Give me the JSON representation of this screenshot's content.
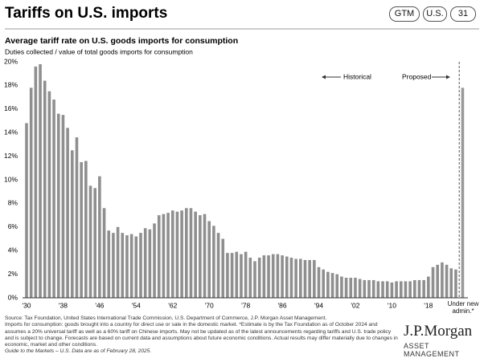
{
  "header": {
    "title": "Tariffs on U.S. imports",
    "tags": [
      "GTM",
      "U.S.",
      "31"
    ]
  },
  "chart_data": {
    "type": "bar",
    "title": "Average tariff rate on U.S. goods imports for consumption",
    "subtitle": "Duties collected / value of total goods imports for consumption",
    "categories": [
      "'30",
      null,
      null,
      null,
      null,
      null,
      null,
      null,
      "'38",
      null,
      null,
      null,
      null,
      null,
      null,
      null,
      "'46",
      null,
      null,
      null,
      null,
      null,
      null,
      null,
      "'54",
      null,
      null,
      null,
      null,
      null,
      null,
      null,
      "'62",
      null,
      null,
      null,
      null,
      null,
      null,
      null,
      "'70",
      null,
      null,
      null,
      null,
      null,
      null,
      null,
      "'78",
      null,
      null,
      null,
      null,
      null,
      null,
      null,
      "'86",
      null,
      null,
      null,
      null,
      null,
      null,
      null,
      "'94",
      null,
      null,
      null,
      null,
      null,
      null,
      null,
      "'02",
      null,
      null,
      null,
      null,
      null,
      null,
      null,
      "'10",
      null,
      null,
      null,
      null,
      null,
      null,
      null,
      "'18",
      null,
      null,
      null,
      null,
      null,
      null,
      "Under new admin.*"
    ],
    "values": [
      14.8,
      17.8,
      19.6,
      19.8,
      18.4,
      17.5,
      16.8,
      15.6,
      15.5,
      14.4,
      12.5,
      13.6,
      11.5,
      11.6,
      9.5,
      9.3,
      10.3,
      7.6,
      5.7,
      5.5,
      6.0,
      5.5,
      5.3,
      5.4,
      5.2,
      5.5,
      5.9,
      5.8,
      6.3,
      7.0,
      7.1,
      7.2,
      7.4,
      7.3,
      7.4,
      7.6,
      7.6,
      7.3,
      7.0,
      7.1,
      6.5,
      6.1,
      5.5,
      5.0,
      3.8,
      3.8,
      3.9,
      3.7,
      3.9,
      3.4,
      3.1,
      3.4,
      3.6,
      3.6,
      3.7,
      3.7,
      3.6,
      3.5,
      3.4,
      3.3,
      3.3,
      3.2,
      3.2,
      3.2,
      2.6,
      2.4,
      2.2,
      2.1,
      2.0,
      1.8,
      1.7,
      1.7,
      1.7,
      1.6,
      1.5,
      1.5,
      1.5,
      1.4,
      1.4,
      1.4,
      1.3,
      1.4,
      1.4,
      1.4,
      1.4,
      1.5,
      1.5,
      1.5,
      1.8,
      2.6,
      2.8,
      3.0,
      2.8,
      2.5,
      2.4,
      17.8
    ],
    "color": "#8f8f8f",
    "proposed_color": "#9a9a9a",
    "ylim": [
      0,
      20
    ],
    "yticks": [
      {
        "value": 0,
        "label": "0%"
      },
      {
        "value": 2,
        "label": "2%"
      },
      {
        "value": 4,
        "label": "4%"
      },
      {
        "value": 6,
        "label": "6%"
      },
      {
        "value": 8,
        "label": "8%"
      },
      {
        "value": 10,
        "label": "10%"
      },
      {
        "value": 12,
        "label": "12%"
      },
      {
        "value": 14,
        "label": "14%"
      },
      {
        "value": 16,
        "label": "16%"
      },
      {
        "value": 18,
        "label": "18%"
      },
      {
        "value": 20,
        "label": "20%"
      }
    ],
    "grid": false,
    "annotations": [
      "Historical",
      "Proposed"
    ]
  },
  "footnotes": [
    "Source: Tax Foundation, United States International Trade Commission, U.S. Department of Commerce, J.P. Morgan Asset Management.",
    "Imports for consumption: goods brought into a country for direct use or sale in the domestic market. *Estimate is by the Tax Foundation as of October 2024 and assumes a 20% universal tariff as well as a 60% tariff on Chinese imports. May not be updated as of the latest announcements regarding tariffs and U.S. trade policy and is subject to change. Forecasts are based on current data and assumptions about future economic conditions. Actual results may differ materially due to changes in economic, market and other conditions.",
    "Guide to the Markets – U.S. Data are as of February 28, 2025."
  ],
  "logo": {
    "name": "J.P.Morgan",
    "subtitle": "ASSET MANAGEMENT"
  }
}
